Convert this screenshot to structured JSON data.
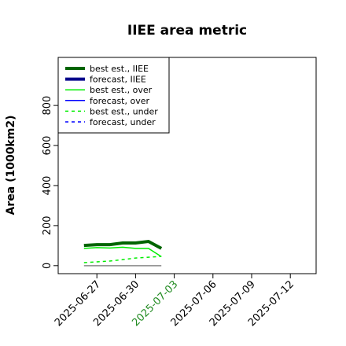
{
  "chart_data": {
    "type": "line",
    "title": "IIEE area metric",
    "y_label": "Area (1000km2)",
    "x": [
      "2025-06-26",
      "2025-06-27",
      "2025-06-28",
      "2025-06-29",
      "2025-06-30",
      "2025-07-01",
      "2025-07-02"
    ],
    "series": [
      {
        "name": "best est., IIEE",
        "color": "#006400",
        "width": 4,
        "dash": "solid",
        "values": [
          101,
          105,
          105,
          113,
          113,
          121,
          86
        ]
      },
      {
        "name": "forecast, IIEE",
        "color": "#00008b",
        "width": 4,
        "dash": "solid",
        "values": [
          null,
          null,
          null,
          null,
          null,
          null,
          null
        ]
      },
      {
        "name": "best est., over",
        "color": "#00ee00",
        "width": 1.5,
        "dash": "solid",
        "values": [
          86,
          90,
          88,
          92,
          86,
          86,
          45
        ]
      },
      {
        "name": "forecast, over",
        "color": "#0000ff",
        "width": 1.5,
        "dash": "solid",
        "values": [
          null,
          null,
          null,
          null,
          null,
          null,
          null
        ]
      },
      {
        "name": "best est., under",
        "color": "#00ee00",
        "width": 1.5,
        "dash": "dashed",
        "values": [
          15,
          19,
          23,
          30,
          38,
          42,
          46
        ]
      },
      {
        "name": "forecast, under",
        "color": "#0000ff",
        "width": 1.5,
        "dash": "dashed",
        "values": [
          null,
          null,
          null,
          null,
          null,
          null,
          null
        ]
      }
    ],
    "hline": {
      "value": 0,
      "color": "#888888"
    },
    "xlim": [
      "2025-06-24",
      "2025-07-14"
    ],
    "xticks": [
      "2025-06-27",
      "2025-06-30",
      "2025-07-03",
      "2025-07-06",
      "2025-07-09",
      "2025-07-12"
    ],
    "xtick_label_colors": [
      "#000000",
      "#000000",
      "#228b22",
      "#000000",
      "#000000",
      "#000000"
    ],
    "ylim": [
      -40,
      1040
    ],
    "yticks": [
      0,
      200,
      400,
      600,
      800
    ],
    "legend": "top-left"
  }
}
